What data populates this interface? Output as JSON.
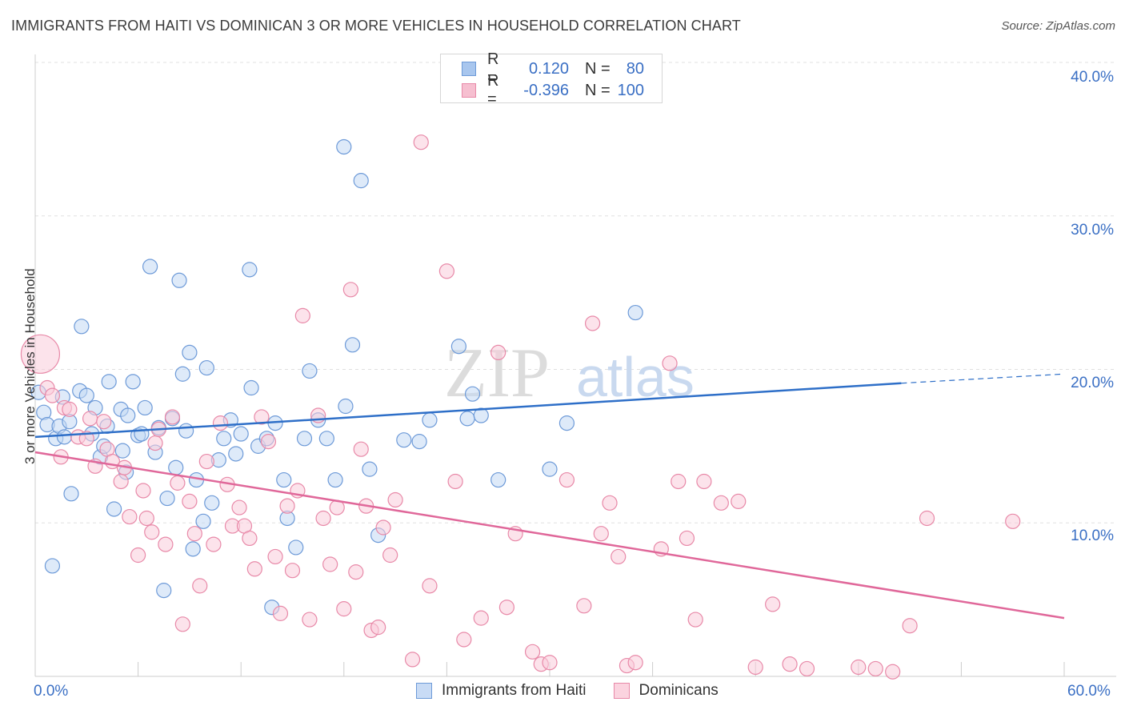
{
  "title": "IMMIGRANTS FROM HAITI VS DOMINICAN 3 OR MORE VEHICLES IN HOUSEHOLD CORRELATION CHART",
  "source": "Source: ZipAtlas.com",
  "watermark": {
    "zip": "ZIP",
    "atlas": "atlas"
  },
  "legend_top": [
    {
      "r_label": "R =",
      "r_value": "0.120",
      "n_label": "N =",
      "n_value": "80",
      "color": "#a8c6ee",
      "border": "#6d9ad8"
    },
    {
      "r_label": "R =",
      "r_value": "-0.396",
      "n_label": "N =",
      "n_value": "100",
      "color": "#f6bfd0",
      "border": "#e889a8"
    }
  ],
  "legend_bottom": [
    {
      "label": "Immigrants from Haiti",
      "color": "#c8dbf5",
      "border": "#6d9ad8"
    },
    {
      "label": "Dominicans",
      "color": "#fbd3df",
      "border": "#e889a8"
    }
  ],
  "chart_data": {
    "type": "scatter",
    "title": "IMMIGRANTS FROM HAITI VS DOMINICAN 3 OR MORE VEHICLES IN HOUSEHOLD CORRELATION CHART",
    "xlabel": "",
    "ylabel": "3 or more Vehicles in Household",
    "xlim": [
      0,
      60
    ],
    "ylim": [
      0,
      40
    ],
    "x_tick_labels": [
      "0.0%",
      "60.0%"
    ],
    "y_tick_labels": [
      "10.0%",
      "20.0%",
      "30.0%",
      "40.0%"
    ],
    "y_ticks": [
      10,
      20,
      30,
      40
    ],
    "grid": true,
    "legend_placement": "top-center",
    "series": [
      {
        "name": "Immigrants from Haiti",
        "color": "#6d9ad8",
        "fill": "#c3d8f4",
        "trend": {
          "x0": 0,
          "y0": 15.6,
          "x1": 50.5,
          "y1": 19.1,
          "dashed_to_x": 60,
          "dashed_to_y": 19.7
        },
        "points": [
          [
            0.2,
            18.5
          ],
          [
            0.5,
            17.2
          ],
          [
            0.7,
            16.4
          ],
          [
            1.0,
            7.2
          ],
          [
            1.2,
            15.5
          ],
          [
            1.4,
            16.3
          ],
          [
            1.6,
            18.2
          ],
          [
            1.7,
            15.6
          ],
          [
            2.0,
            16.6
          ],
          [
            2.1,
            11.9
          ],
          [
            2.6,
            18.6
          ],
          [
            2.7,
            22.8
          ],
          [
            3.0,
            18.3
          ],
          [
            3.3,
            15.8
          ],
          [
            3.5,
            17.5
          ],
          [
            3.8,
            14.3
          ],
          [
            4.0,
            15.0
          ],
          [
            4.2,
            16.3
          ],
          [
            4.3,
            19.2
          ],
          [
            4.6,
            10.9
          ],
          [
            5.0,
            17.4
          ],
          [
            5.1,
            14.7
          ],
          [
            5.3,
            13.3
          ],
          [
            5.4,
            17.0
          ],
          [
            5.7,
            19.2
          ],
          [
            6.0,
            15.7
          ],
          [
            6.2,
            15.8
          ],
          [
            6.4,
            17.5
          ],
          [
            6.7,
            26.7
          ],
          [
            7.0,
            14.6
          ],
          [
            7.2,
            16.2
          ],
          [
            7.5,
            5.6
          ],
          [
            7.7,
            11.6
          ],
          [
            8.0,
            16.8
          ],
          [
            8.2,
            13.6
          ],
          [
            8.4,
            25.8
          ],
          [
            8.6,
            19.7
          ],
          [
            8.8,
            16.0
          ],
          [
            9.0,
            21.1
          ],
          [
            9.2,
            8.3
          ],
          [
            9.4,
            12.8
          ],
          [
            9.8,
            10.1
          ],
          [
            10.0,
            20.1
          ],
          [
            10.3,
            11.3
          ],
          [
            10.7,
            14.1
          ],
          [
            11.0,
            15.5
          ],
          [
            11.4,
            16.7
          ],
          [
            11.7,
            14.5
          ],
          [
            12.0,
            15.8
          ],
          [
            12.5,
            26.5
          ],
          [
            12.6,
            18.8
          ],
          [
            13.0,
            15.0
          ],
          [
            13.5,
            15.5
          ],
          [
            13.8,
            4.5
          ],
          [
            14.0,
            16.5
          ],
          [
            14.5,
            12.8
          ],
          [
            14.7,
            10.3
          ],
          [
            15.2,
            8.4
          ],
          [
            15.7,
            15.5
          ],
          [
            16.0,
            19.9
          ],
          [
            16.5,
            16.7
          ],
          [
            17.0,
            15.5
          ],
          [
            17.5,
            12.8
          ],
          [
            18.0,
            34.5
          ],
          [
            18.5,
            21.6
          ],
          [
            19.0,
            32.3
          ],
          [
            19.5,
            13.5
          ],
          [
            20.0,
            9.2
          ],
          [
            21.5,
            15.4
          ],
          [
            23.0,
            16.7
          ],
          [
            24.7,
            21.5
          ],
          [
            25.2,
            16.8
          ],
          [
            25.5,
            18.4
          ],
          [
            26.0,
            17.0
          ],
          [
            27.0,
            12.8
          ],
          [
            30.0,
            13.5
          ],
          [
            35.0,
            23.7
          ],
          [
            31.0,
            16.5
          ],
          [
            18.1,
            17.6
          ],
          [
            22.4,
            15.3
          ]
        ]
      },
      {
        "name": "Dominicans",
        "color": "#e889a8",
        "fill": "#f9ccda",
        "trend": {
          "x0": 0,
          "y0": 14.6,
          "x1": 60,
          "y1": 3.8
        },
        "points": [
          [
            0.3,
            21.0
          ],
          [
            0.7,
            18.8
          ],
          [
            1.0,
            18.3
          ],
          [
            1.5,
            14.3
          ],
          [
            1.7,
            17.5
          ],
          [
            2.0,
            17.4
          ],
          [
            2.5,
            15.6
          ],
          [
            3.0,
            15.5
          ],
          [
            3.2,
            16.8
          ],
          [
            3.5,
            13.7
          ],
          [
            4.0,
            16.6
          ],
          [
            4.2,
            14.8
          ],
          [
            4.5,
            14.0
          ],
          [
            5.0,
            12.7
          ],
          [
            5.2,
            13.6
          ],
          [
            5.5,
            10.4
          ],
          [
            6.0,
            7.9
          ],
          [
            6.3,
            12.1
          ],
          [
            6.5,
            10.3
          ],
          [
            6.8,
            9.4
          ],
          [
            7.0,
            15.2
          ],
          [
            7.2,
            16.1
          ],
          [
            7.6,
            8.6
          ],
          [
            8.0,
            16.9
          ],
          [
            8.3,
            12.6
          ],
          [
            8.6,
            3.4
          ],
          [
            9.0,
            11.4
          ],
          [
            9.3,
            9.3
          ],
          [
            9.6,
            5.9
          ],
          [
            10.0,
            14.0
          ],
          [
            10.4,
            8.6
          ],
          [
            10.8,
            16.5
          ],
          [
            11.2,
            12.5
          ],
          [
            11.5,
            9.8
          ],
          [
            11.9,
            11.0
          ],
          [
            12.2,
            9.8
          ],
          [
            12.5,
            9.0
          ],
          [
            12.8,
            7.0
          ],
          [
            13.2,
            16.9
          ],
          [
            13.6,
            15.3
          ],
          [
            14.0,
            7.8
          ],
          [
            14.3,
            4.1
          ],
          [
            14.7,
            11.1
          ],
          [
            15.0,
            6.9
          ],
          [
            15.3,
            12.1
          ],
          [
            15.6,
            23.5
          ],
          [
            16.0,
            3.7
          ],
          [
            16.5,
            17.0
          ],
          [
            16.8,
            10.3
          ],
          [
            17.2,
            7.3
          ],
          [
            17.6,
            11.0
          ],
          [
            18.0,
            4.4
          ],
          [
            18.4,
            25.2
          ],
          [
            18.7,
            6.8
          ],
          [
            19.0,
            14.8
          ],
          [
            19.3,
            11.1
          ],
          [
            19.6,
            3.0
          ],
          [
            20.0,
            3.2
          ],
          [
            20.3,
            9.7
          ],
          [
            20.7,
            7.9
          ],
          [
            21.0,
            11.5
          ],
          [
            22.0,
            1.1
          ],
          [
            22.5,
            34.8
          ],
          [
            23.0,
            5.9
          ],
          [
            24.0,
            26.4
          ],
          [
            24.5,
            12.7
          ],
          [
            25.0,
            2.4
          ],
          [
            26.0,
            3.8
          ],
          [
            27.0,
            21.1
          ],
          [
            27.5,
            4.5
          ],
          [
            28.0,
            9.3
          ],
          [
            29.0,
            1.6
          ],
          [
            29.5,
            0.8
          ],
          [
            30.0,
            0.9
          ],
          [
            31.0,
            12.8
          ],
          [
            32.0,
            4.6
          ],
          [
            32.5,
            23.0
          ],
          [
            33.0,
            9.3
          ],
          [
            33.5,
            11.3
          ],
          [
            34.0,
            7.8
          ],
          [
            34.5,
            0.7
          ],
          [
            35.0,
            0.9
          ],
          [
            36.5,
            8.3
          ],
          [
            37.0,
            20.4
          ],
          [
            37.5,
            12.7
          ],
          [
            38.0,
            9.0
          ],
          [
            38.5,
            3.7
          ],
          [
            39.0,
            12.7
          ],
          [
            40.0,
            11.3
          ],
          [
            41.0,
            11.4
          ],
          [
            42.0,
            0.6
          ],
          [
            43.0,
            4.7
          ],
          [
            44.0,
            0.8
          ],
          [
            45.0,
            0.5
          ],
          [
            48.0,
            0.6
          ],
          [
            49.0,
            0.5
          ],
          [
            50.0,
            0.3
          ],
          [
            51.0,
            3.3
          ],
          [
            52.0,
            10.3
          ],
          [
            57.0,
            10.1
          ]
        ]
      }
    ]
  }
}
